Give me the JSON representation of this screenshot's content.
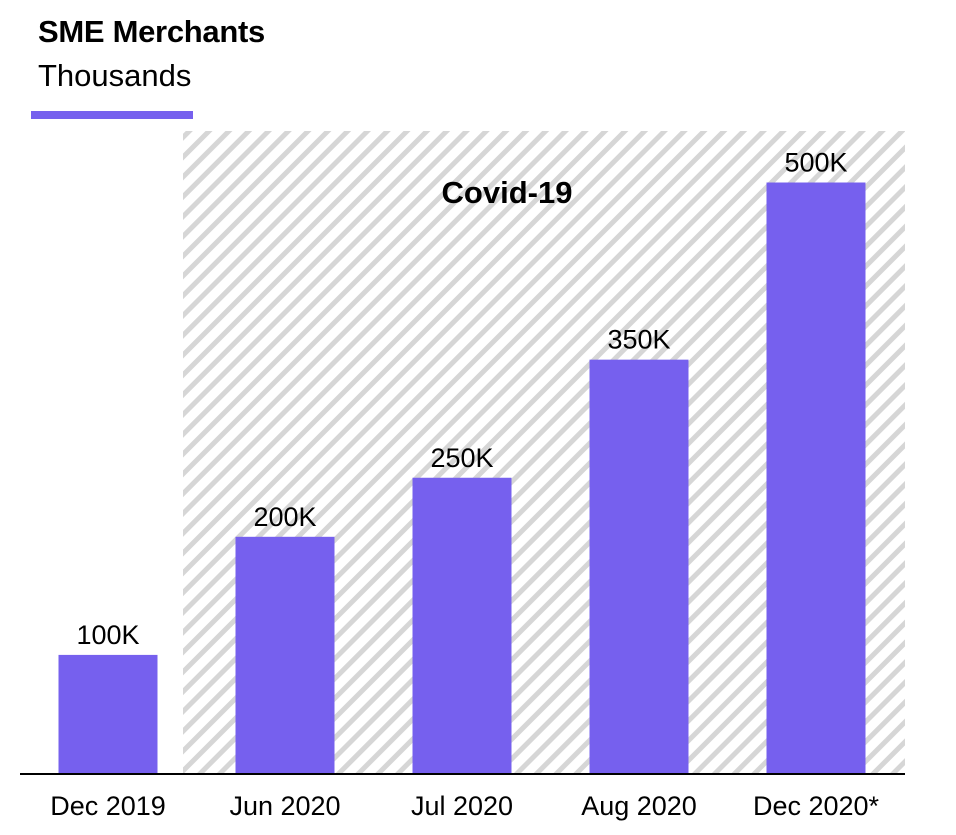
{
  "title": "SME Merchants",
  "subtitle": "Thousands",
  "colors": {
    "bar": "#7660EE",
    "accent": "#7660EE",
    "hatch": "#D6D6D6",
    "text": "#000000"
  },
  "chart_data": {
    "type": "bar",
    "categories": [
      "Dec 2019",
      "Jun 2020",
      "Jul 2020",
      "Aug 2020",
      "Dec 2020*"
    ],
    "values": [
      100,
      200,
      250,
      350,
      500
    ],
    "data_labels": [
      "100K",
      "200K",
      "250K",
      "350K",
      "500K"
    ],
    "ylabel": "Thousands",
    "ylim": [
      0,
      540
    ],
    "grid": false,
    "annotation": {
      "text": "Covid-19",
      "shaded_categories": [
        "Jun 2020",
        "Jul 2020",
        "Aug 2020",
        "Dec 2020*"
      ]
    }
  }
}
